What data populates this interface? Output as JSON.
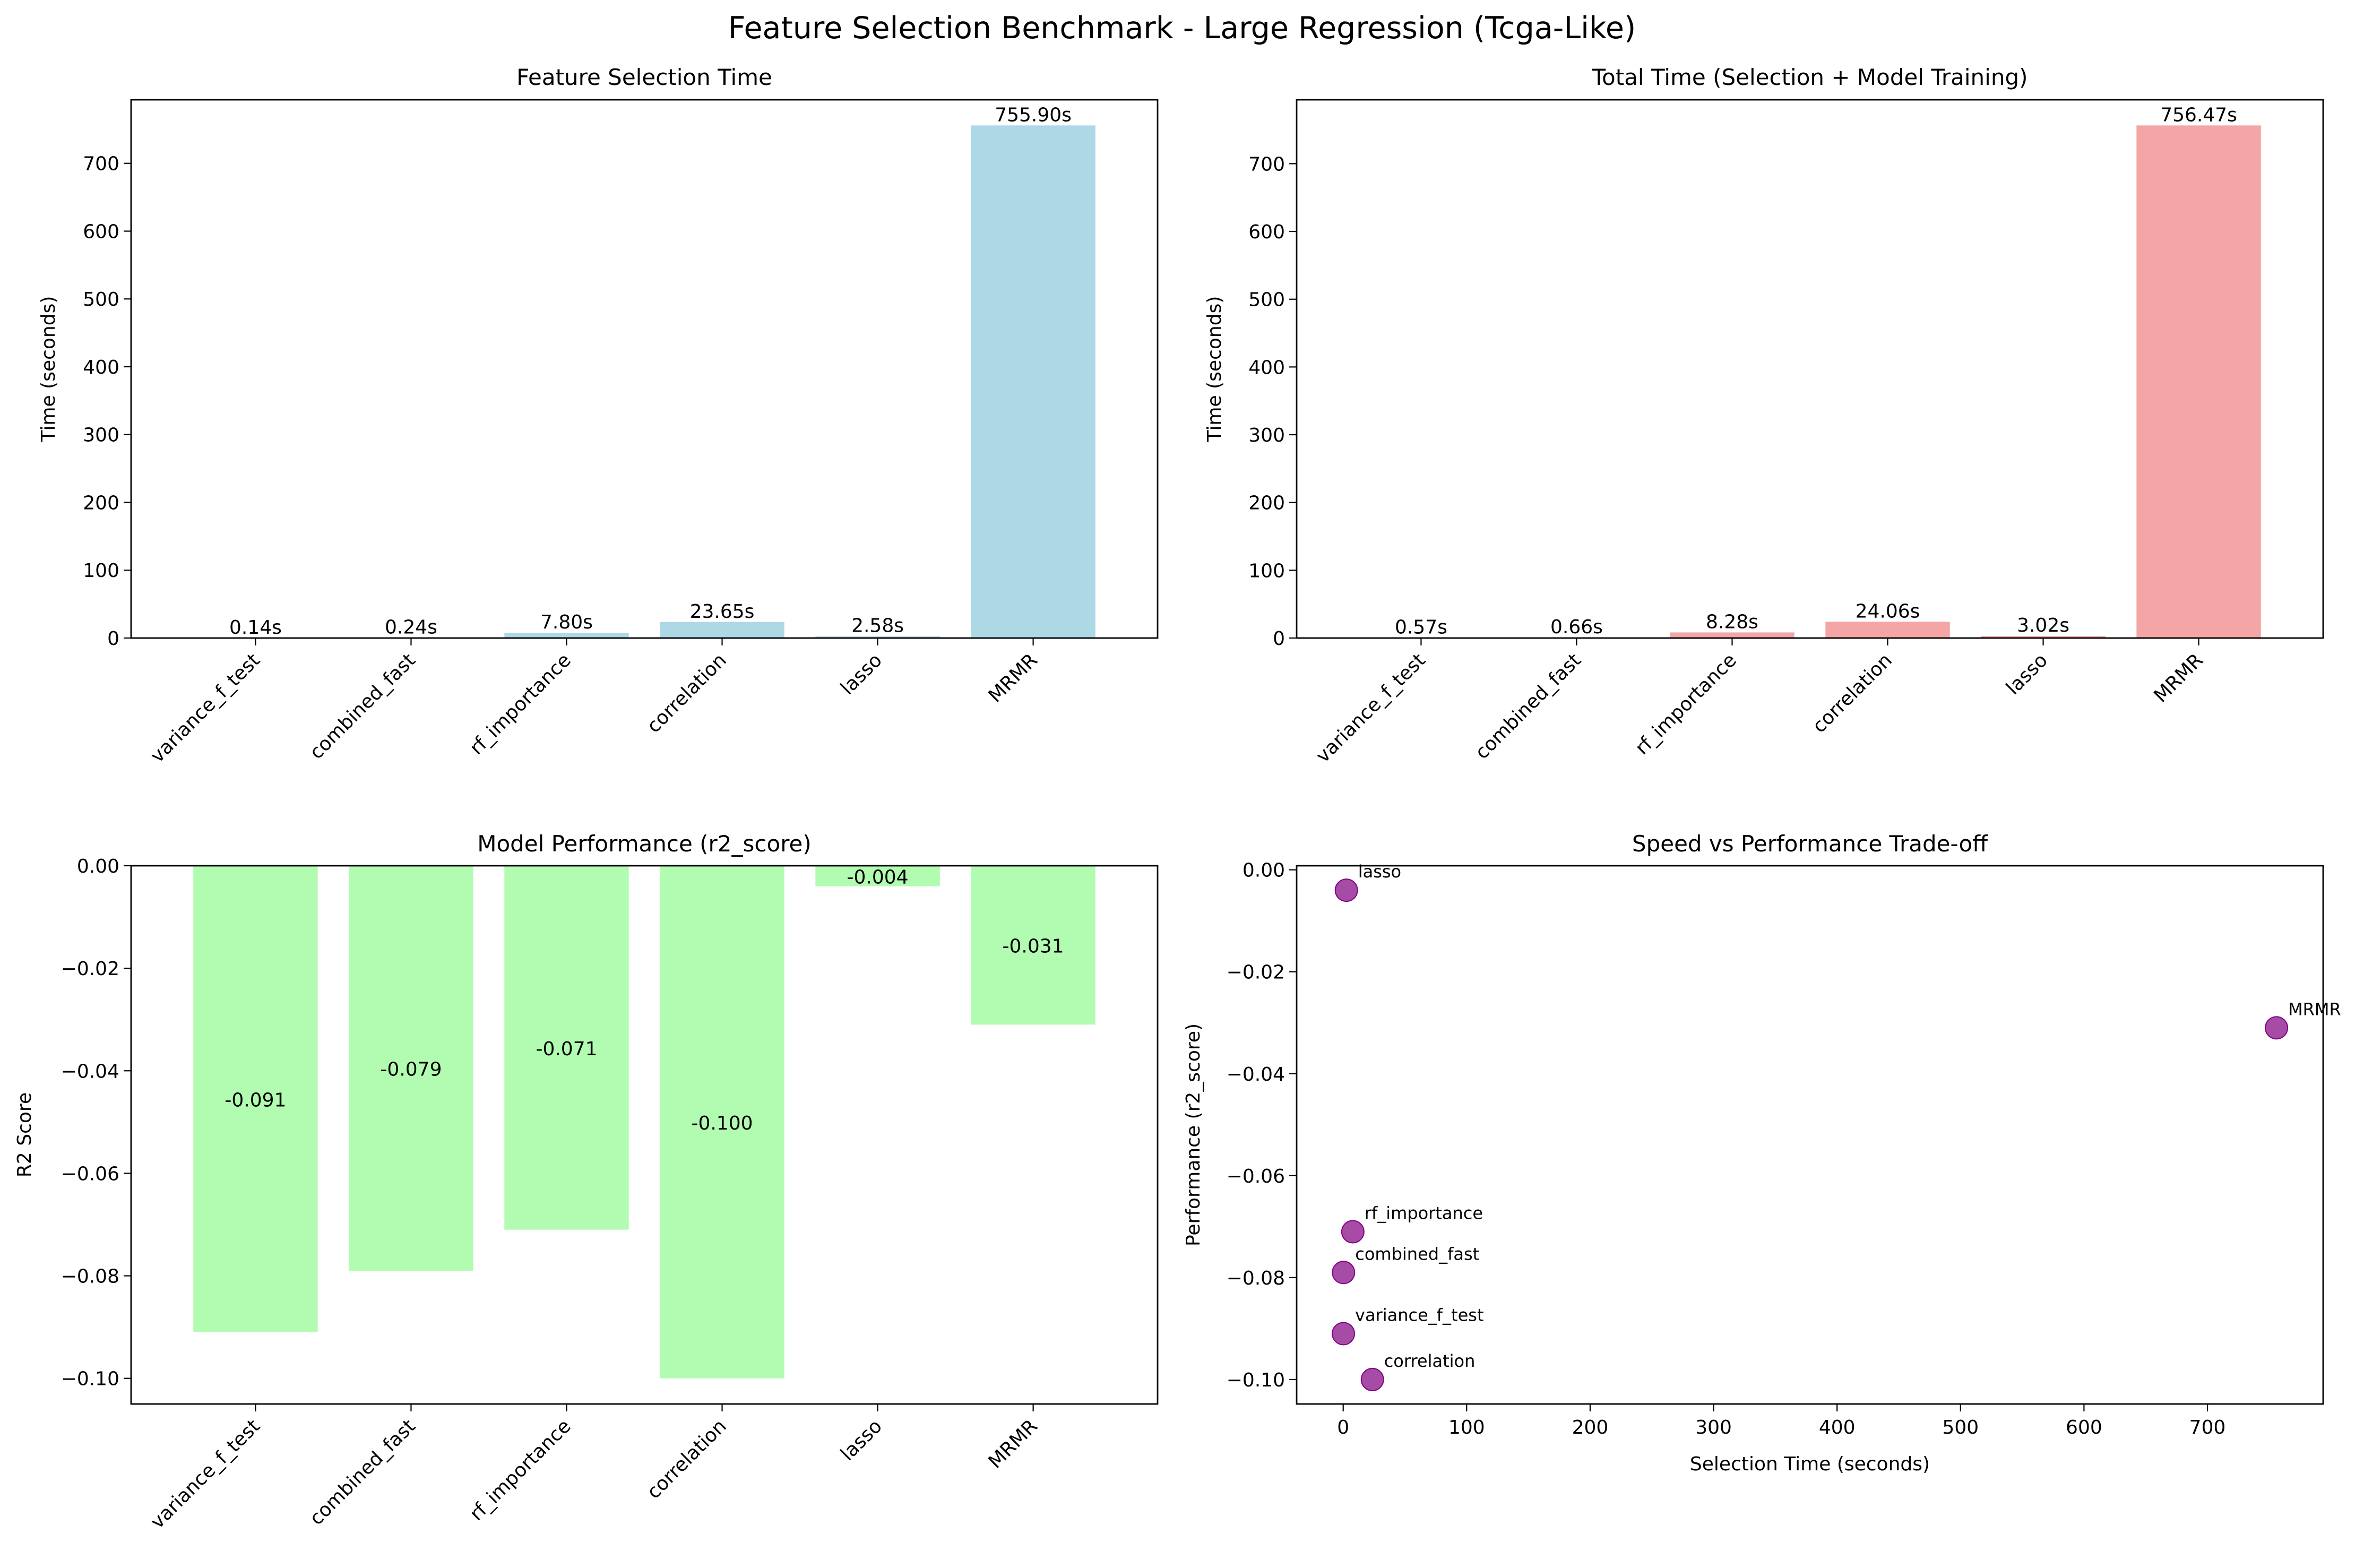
{
  "figure": {
    "title": "Feature Selection Benchmark - Large Regression (Tcga-Like)"
  },
  "colors": {
    "selection_bar": "#add8e6",
    "total_bar": "#f08080",
    "performance_bar": "#98fb98",
    "scatter_point": "#800080",
    "axis": "#000000"
  },
  "chart_data": [
    {
      "id": "selection",
      "type": "bar",
      "title": "Feature Selection Time",
      "xlabel": "",
      "ylabel": "Time (seconds)",
      "categories": [
        "variance_f_test",
        "combined_fast",
        "rf_importance",
        "correlation",
        "lasso",
        "MRMR"
      ],
      "values": [
        0.14,
        0.24,
        7.8,
        23.65,
        2.58,
        755.9
      ],
      "data_labels": [
        "0.14s",
        "0.24s",
        "7.80s",
        "23.65s",
        "2.58s",
        "755.90s"
      ],
      "ylim": [
        0,
        793.7
      ],
      "yticks": [
        0,
        100,
        200,
        300,
        400,
        500,
        600,
        700
      ],
      "grid": false,
      "legend": "none"
    },
    {
      "id": "total",
      "type": "bar",
      "title": "Total Time (Selection + Model Training)",
      "xlabel": "",
      "ylabel": "Time (seconds)",
      "categories": [
        "variance_f_test",
        "combined_fast",
        "rf_importance",
        "correlation",
        "lasso",
        "MRMR"
      ],
      "values": [
        0.57,
        0.66,
        8.28,
        24.06,
        3.02,
        756.47
      ],
      "data_labels": [
        "0.57s",
        "0.66s",
        "8.28s",
        "24.06s",
        "3.02s",
        "756.47s"
      ],
      "ylim": [
        0,
        794.3
      ],
      "yticks": [
        0,
        100,
        200,
        300,
        400,
        500,
        600,
        700
      ],
      "grid": false,
      "legend": "none"
    },
    {
      "id": "performance",
      "type": "bar",
      "title": "Model Performance (r2_score)",
      "xlabel": "",
      "ylabel": "R2 Score",
      "categories": [
        "variance_f_test",
        "combined_fast",
        "rf_importance",
        "correlation",
        "lasso",
        "MRMR"
      ],
      "values": [
        -0.091,
        -0.079,
        -0.071,
        -0.1,
        -0.004,
        -0.031
      ],
      "data_labels": [
        "-0.091",
        "-0.079",
        "-0.071",
        "-0.100",
        "-0.004",
        "-0.031"
      ],
      "ylim": [
        -0.105,
        0.0
      ],
      "yticks": [
        0.0,
        -0.02,
        -0.04,
        -0.06,
        -0.08,
        -0.1
      ],
      "ytick_labels": [
        "0.00",
        "−0.02",
        "−0.04",
        "−0.06",
        "−0.08",
        "−0.10"
      ],
      "grid": false,
      "legend": "none"
    },
    {
      "id": "tradeoff",
      "type": "scatter",
      "title": "Speed vs Performance Trade-off",
      "xlabel": "Selection Time (seconds)",
      "ylabel": "Performance (r2_score)",
      "points": [
        {
          "label": "variance_f_test",
          "x": 0.14,
          "y": -0.091
        },
        {
          "label": "combined_fast",
          "x": 0.24,
          "y": -0.079
        },
        {
          "label": "rf_importance",
          "x": 7.8,
          "y": -0.071
        },
        {
          "label": "correlation",
          "x": 23.65,
          "y": -0.1
        },
        {
          "label": "lasso",
          "x": 2.58,
          "y": -0.004
        },
        {
          "label": "MRMR",
          "x": 755.9,
          "y": -0.031
        }
      ],
      "xlim": [
        -37.7,
        793.7
      ],
      "ylim": [
        -0.1048,
        0.0008
      ],
      "xticks": [
        0,
        100,
        200,
        300,
        400,
        500,
        600,
        700
      ],
      "yticks": [
        0.0,
        -0.02,
        -0.04,
        -0.06,
        -0.08,
        -0.1
      ],
      "ytick_labels": [
        "0.00",
        "−0.02",
        "−0.04",
        "−0.06",
        "−0.08",
        "−0.10"
      ],
      "grid": false,
      "legend": "none"
    }
  ]
}
